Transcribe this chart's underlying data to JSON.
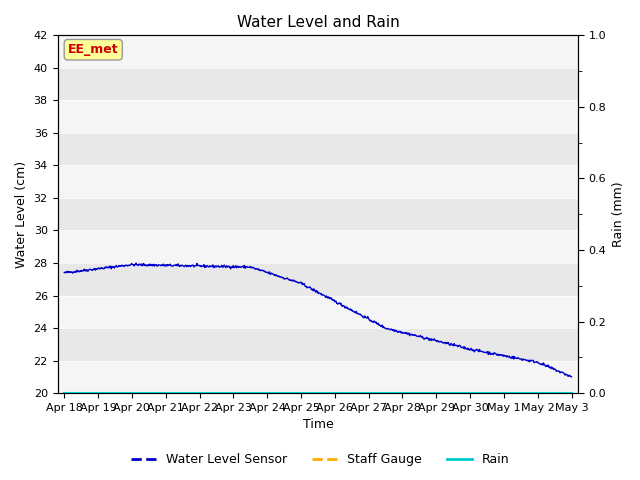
{
  "title": "Water Level and Rain",
  "xlabel": "Time",
  "ylabel_left": "Water Level (cm)",
  "ylabel_right": "Rain (mm)",
  "ylim_left": [
    20,
    42
  ],
  "ylim_right": [
    0.0,
    1.0
  ],
  "yticks_left": [
    20,
    22,
    24,
    26,
    28,
    30,
    32,
    34,
    36,
    38,
    40,
    42
  ],
  "yticks_right": [
    0.0,
    0.2,
    0.4,
    0.6,
    0.8,
    1.0
  ],
  "background_color_dark": "#e8e8e8",
  "background_color_light": "#f5f5f5",
  "line_color_sensor": "#0000cc",
  "line_color_gauge": "#ffaa00",
  "line_color_rain": "#00cccc",
  "annotation_text": "EE_met",
  "annotation_bbox_facecolor": "#ffff99",
  "annotation_bbox_edgecolor": "#aaaaaa",
  "annotation_text_color": "#cc0000",
  "legend_labels": [
    "Water Level Sensor",
    "Staff Gauge",
    "Rain"
  ],
  "legend_colors": [
    "#0000cc",
    "#ffaa00",
    "#00cccc"
  ],
  "tick_label_fontsize": 8,
  "axis_label_fontsize": 9,
  "title_fontsize": 11,
  "xtick_labels": [
    "Apr 18",
    "Apr 19",
    "Apr 20",
    "Apr 21",
    "Apr 22",
    "Apr 23",
    "Apr 24",
    "Apr 25",
    "Apr 26",
    "Apr 27",
    "Apr 28",
    "Apr 29",
    "Apr 30",
    "May 1",
    "May 2",
    "May 3"
  ]
}
